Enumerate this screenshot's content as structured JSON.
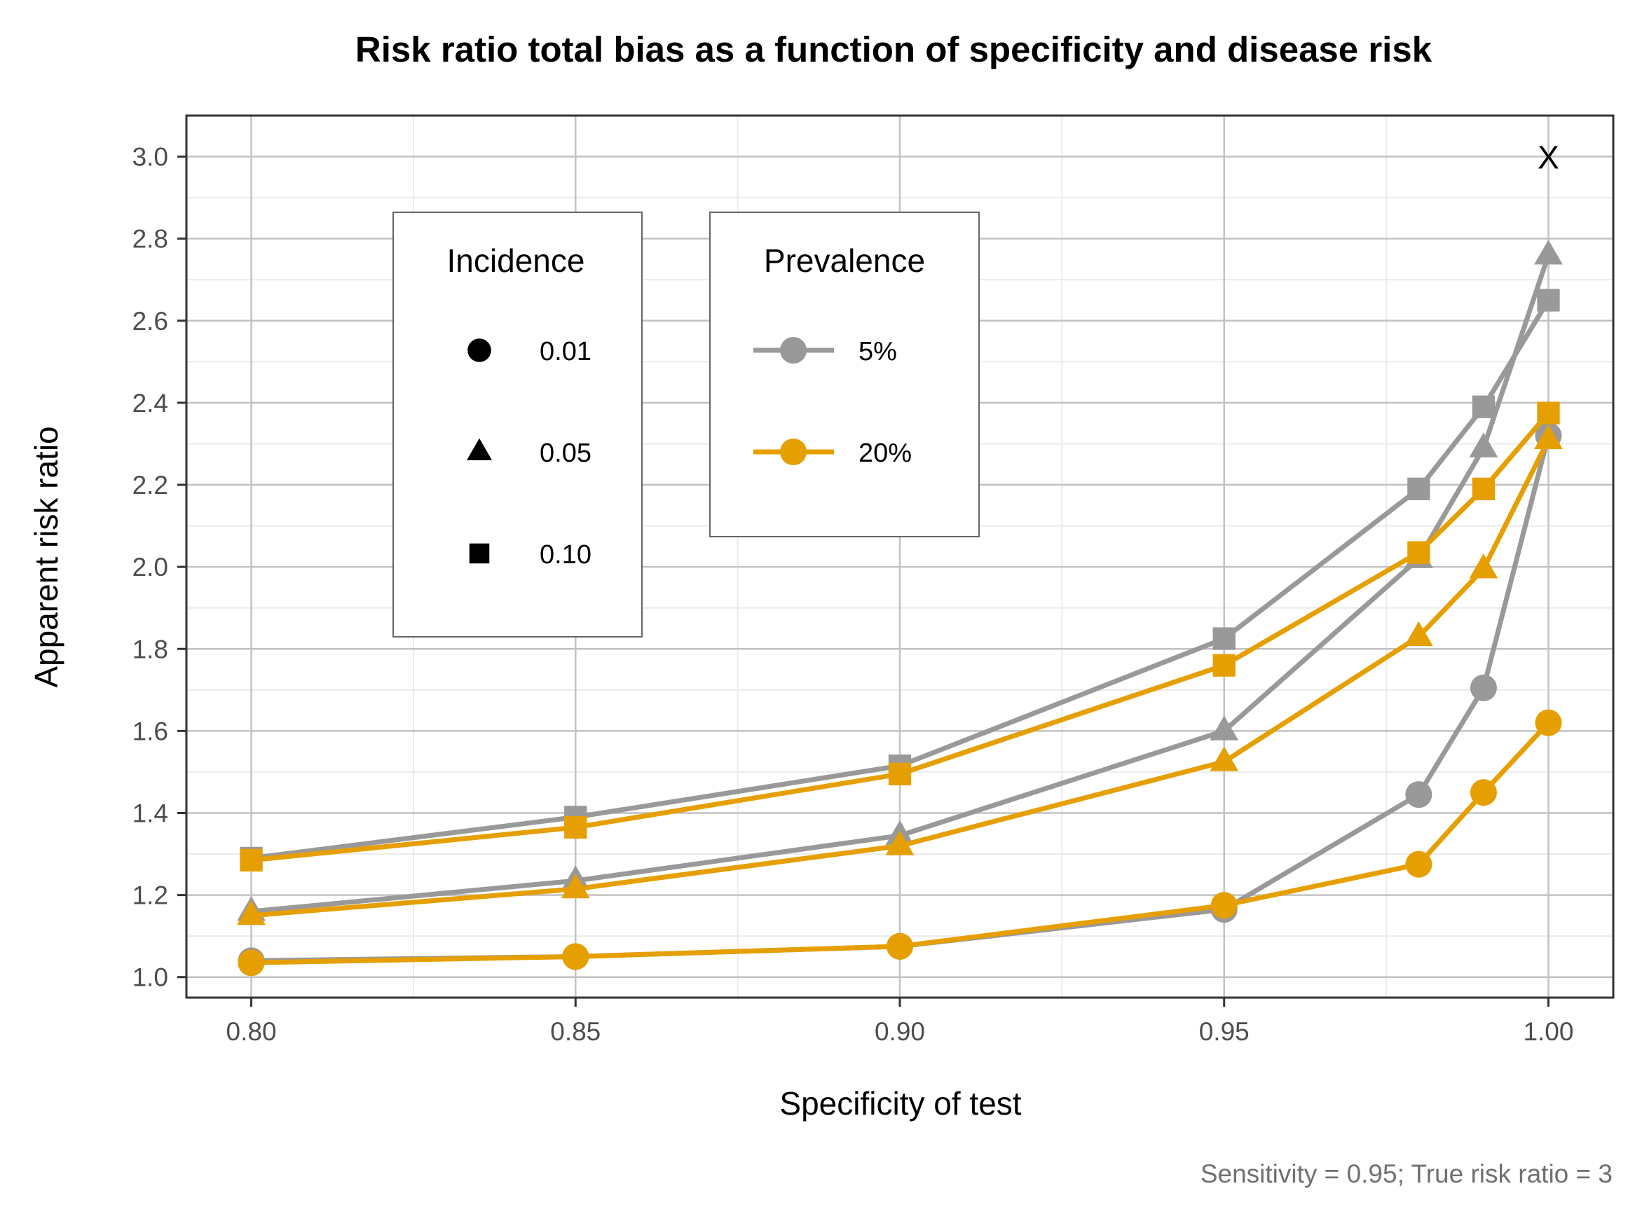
{
  "chart_data": {
    "type": "line",
    "title": "Risk ratio total bias as a function of specificity and disease risk",
    "xlabel": "Specificity of test",
    "ylabel": "Apparent risk ratio",
    "caption": "Sensitivity = 0.95; True risk ratio = 3",
    "x_ticks": [
      "0.80",
      "0.85",
      "0.90",
      "0.95",
      "1.00"
    ],
    "y_ticks": [
      "1.0",
      "1.2",
      "1.4",
      "1.6",
      "1.8",
      "2.0",
      "2.2",
      "2.4",
      "2.6",
      "2.8",
      "3.0"
    ],
    "xlim": [
      0.79,
      1.01
    ],
    "ylim": [
      0.95,
      3.1
    ],
    "grid": true,
    "x": [
      0.8,
      0.85,
      0.9,
      0.95,
      0.98,
      0.99,
      1.0
    ],
    "annotation": {
      "text": "X",
      "x": 1.0,
      "y": 3.0
    },
    "legend_incidence": {
      "title": "Incidence",
      "entries": [
        {
          "label": "0.01",
          "shape": "circle"
        },
        {
          "label": "0.05",
          "shape": "triangle"
        },
        {
          "label": "0.10",
          "shape": "square"
        }
      ]
    },
    "legend_prevalence": {
      "title": "Prevalence",
      "entries": [
        {
          "label": "5%",
          "color": "#999999"
        },
        {
          "label": "20%",
          "color": "#E69F00"
        }
      ]
    },
    "series": [
      {
        "prevalence": "5%",
        "incidence": "0.10",
        "shape": "square",
        "color": "#999999",
        "values": [
          1.29,
          1.39,
          1.515,
          1.825,
          2.19,
          2.39,
          2.65
        ]
      },
      {
        "prevalence": "5%",
        "incidence": "0.05",
        "shape": "triangle",
        "color": "#999999",
        "values": [
          1.16,
          1.235,
          1.345,
          1.6,
          2.02,
          2.29,
          2.76
        ]
      },
      {
        "prevalence": "5%",
        "incidence": "0.01",
        "shape": "circle",
        "color": "#999999",
        "values": [
          1.04,
          1.05,
          1.075,
          1.165,
          1.445,
          1.705,
          2.32
        ]
      },
      {
        "prevalence": "20%",
        "incidence": "0.10",
        "shape": "square",
        "color": "#E69F00",
        "values": [
          1.285,
          1.365,
          1.495,
          1.76,
          2.035,
          2.19,
          2.375
        ]
      },
      {
        "prevalence": "20%",
        "incidence": "0.05",
        "shape": "triangle",
        "color": "#E69F00",
        "values": [
          1.15,
          1.215,
          1.32,
          1.525,
          1.83,
          1.995,
          2.31
        ]
      },
      {
        "prevalence": "20%",
        "incidence": "0.01",
        "shape": "circle",
        "color": "#E69F00",
        "values": [
          1.035,
          1.05,
          1.075,
          1.175,
          1.275,
          1.45,
          1.62
        ]
      }
    ]
  }
}
